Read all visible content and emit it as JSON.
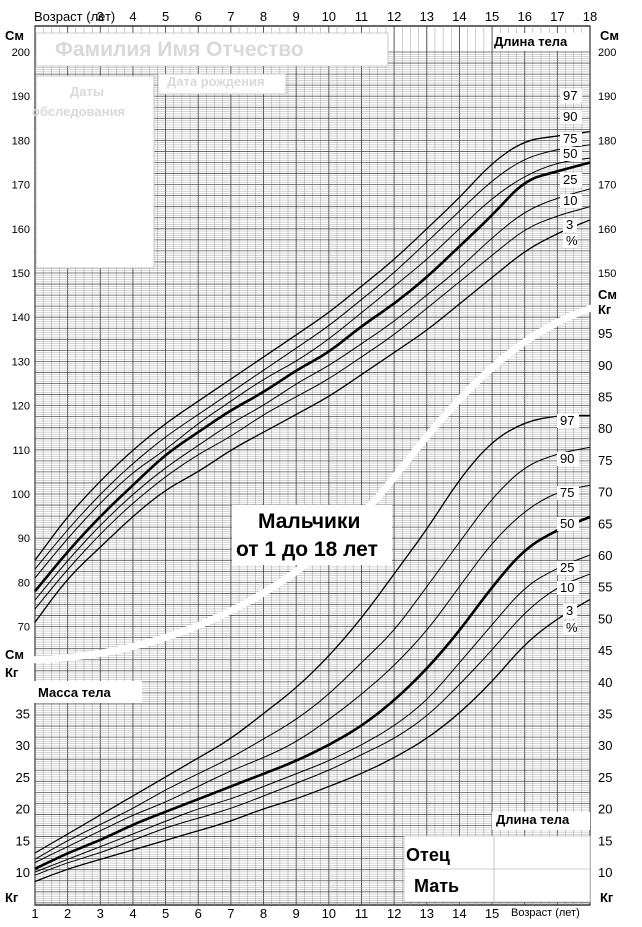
{
  "header": {
    "age_label": "Возраст (лет)",
    "height_title": "Длина тела",
    "cm": "См",
    "kg": "Кг"
  },
  "form": {
    "name_placeholder": "Фамилия Имя Отчество",
    "exam_dates": "Даты обследования",
    "exam_dates_l1": "Даты",
    "exam_dates_l2": "обследования",
    "birth_date": "Дата рождения"
  },
  "title": {
    "line1": "Мальчики",
    "line2": "от 1 до 18 лет"
  },
  "weight_title": "Масса тела",
  "parents": {
    "father": "Отец",
    "mother": "Мать",
    "height_label": "Длина тела"
  },
  "footer": {
    "age_label": "Возраст (лет)"
  },
  "chart_data": [
    {
      "type": "line",
      "title": "Длина тела",
      "unit": "См",
      "x_ticks_top": [
        3,
        4,
        5,
        6,
        7,
        8,
        9,
        10,
        11,
        12,
        13,
        14,
        15,
        16,
        17,
        18
      ],
      "xlim": [
        1,
        18
      ],
      "ylim": [
        70,
        200
      ],
      "y_ticks": [
        200,
        190,
        180,
        170,
        160,
        150,
        140,
        130,
        120,
        110,
        100,
        90,
        80,
        70
      ],
      "y_ticks_right": [
        200,
        190,
        180,
        170,
        160,
        150
      ],
      "percentile_labels": [
        "97",
        "90",
        "75",
        "50",
        "25",
        "10",
        "3",
        "%"
      ],
      "series": [
        {
          "name": "97",
          "x": [
            1,
            2,
            3,
            4,
            5,
            6,
            7,
            8,
            9,
            10,
            11,
            12,
            13,
            14,
            15,
            16,
            17,
            18
          ],
          "y": [
            85,
            95,
            103,
            110,
            116,
            121,
            126,
            131,
            136,
            141,
            147,
            153,
            160,
            167,
            175,
            180,
            181,
            182
          ]
        },
        {
          "name": "90",
          "x": [
            1,
            2,
            3,
            4,
            5,
            6,
            7,
            8,
            9,
            10,
            11,
            12,
            13,
            14,
            15,
            16,
            17,
            18
          ],
          "y": [
            83,
            92,
            100,
            107,
            113,
            118,
            123,
            128,
            133,
            138,
            144,
            150,
            157,
            164,
            171,
            176,
            178,
            179
          ]
        },
        {
          "name": "75",
          "x": [
            1,
            2,
            3,
            4,
            5,
            6,
            7,
            8,
            9,
            10,
            11,
            12,
            13,
            14,
            15,
            16,
            17,
            18
          ],
          "y": [
            81,
            90,
            98,
            105,
            110,
            116,
            121,
            126,
            130,
            135,
            141,
            147,
            153,
            160,
            167,
            172,
            175,
            176
          ]
        },
        {
          "name": "50",
          "x": [
            1,
            2,
            3,
            4,
            5,
            6,
            7,
            8,
            9,
            10,
            11,
            12,
            13,
            14,
            15,
            16,
            17,
            18
          ],
          "y": [
            78,
            87,
            95,
            102,
            109,
            114,
            119,
            123,
            128,
            132,
            138,
            143,
            149,
            156,
            163,
            171,
            173,
            175
          ]
        },
        {
          "name": "25",
          "x": [
            1,
            2,
            3,
            4,
            5,
            6,
            7,
            8,
            9,
            10,
            11,
            12,
            13,
            14,
            15,
            16,
            17,
            18
          ],
          "y": [
            76,
            85,
            93,
            100,
            106,
            111,
            116,
            120,
            125,
            129,
            134,
            139,
            145,
            151,
            158,
            164,
            167,
            169
          ]
        },
        {
          "name": "10",
          "x": [
            1,
            2,
            3,
            4,
            5,
            6,
            7,
            8,
            9,
            10,
            11,
            12,
            13,
            14,
            15,
            16,
            17,
            18
          ],
          "y": [
            74,
            83,
            91,
            98,
            104,
            109,
            113,
            118,
            122,
            126,
            131,
            136,
            142,
            148,
            154,
            160,
            163,
            165
          ]
        },
        {
          "name": "3",
          "x": [
            1,
            2,
            3,
            4,
            5,
            6,
            7,
            8,
            9,
            10,
            11,
            12,
            13,
            14,
            15,
            16,
            17,
            18
          ],
          "y": [
            71,
            81,
            88,
            95,
            101,
            105,
            110,
            114,
            118,
            122,
            127,
            132,
            137,
            143,
            149,
            155,
            159,
            162
          ]
        }
      ]
    },
    {
      "type": "line",
      "title": "Масса тела",
      "unit": "Кг",
      "x_ticks_bottom": [
        1,
        2,
        3,
        4,
        5,
        6,
        7,
        8,
        9,
        10,
        11,
        12,
        13,
        14,
        15
      ],
      "xlabel": "Возраст (лет)",
      "xlim": [
        1,
        18
      ],
      "ylim": [
        10,
        95
      ],
      "y_ticks_left": [
        35,
        30,
        25,
        20,
        15,
        10
      ],
      "y_ticks_right": [
        95,
        90,
        85,
        80,
        75,
        70,
        65,
        60,
        55,
        50,
        45,
        40,
        35,
        30,
        25,
        20,
        15,
        10
      ],
      "percentile_labels": [
        "97",
        "90",
        "75",
        "50",
        "25",
        "10",
        "3",
        "%"
      ],
      "series": [
        {
          "name": "97",
          "x": [
            1,
            2,
            3,
            4,
            5,
            6,
            7,
            8,
            9,
            10,
            11,
            12,
            13,
            14,
            15,
            16,
            17,
            18
          ],
          "y": [
            13,
            16,
            19,
            22,
            25,
            28,
            31,
            35,
            39,
            44,
            50,
            57,
            64,
            72,
            78,
            81,
            82,
            82
          ]
        },
        {
          "name": "90",
          "x": [
            1,
            2,
            3,
            4,
            5,
            6,
            7,
            8,
            9,
            10,
            11,
            12,
            13,
            14,
            15,
            16,
            17,
            18
          ],
          "y": [
            12,
            15,
            17.5,
            20,
            23,
            25.5,
            28,
            31,
            34,
            38,
            43,
            48,
            55,
            62,
            69,
            74,
            76,
            77
          ]
        },
        {
          "name": "75",
          "x": [
            1,
            2,
            3,
            4,
            5,
            6,
            7,
            8,
            9,
            10,
            11,
            12,
            13,
            14,
            15,
            16,
            17,
            18
          ],
          "y": [
            11.5,
            14,
            16.5,
            19,
            21,
            23.5,
            26,
            28,
            30.5,
            34,
            38,
            42.5,
            48,
            55,
            62,
            67,
            70,
            71
          ]
        },
        {
          "name": "50",
          "x": [
            1,
            2,
            3,
            4,
            5,
            6,
            7,
            8,
            9,
            10,
            11,
            12,
            13,
            14,
            15,
            16,
            17,
            18
          ],
          "y": [
            10.5,
            13,
            15,
            17.5,
            19.5,
            21.5,
            23.5,
            25.5,
            27.5,
            30,
            33,
            37,
            42,
            48,
            55,
            61,
            64,
            66
          ]
        },
        {
          "name": "25",
          "x": [
            1,
            2,
            3,
            4,
            5,
            6,
            7,
            8,
            9,
            10,
            11,
            12,
            13,
            14,
            15,
            16,
            17,
            18
          ],
          "y": [
            10,
            12,
            14,
            16,
            18,
            20,
            21.5,
            23.5,
            25.5,
            27.5,
            30,
            33,
            37,
            43,
            49,
            55,
            58,
            60
          ]
        },
        {
          "name": "10",
          "x": [
            1,
            2,
            3,
            4,
            5,
            6,
            7,
            8,
            9,
            10,
            11,
            12,
            13,
            14,
            15,
            16,
            17,
            18
          ],
          "y": [
            9.5,
            11.5,
            13,
            15,
            17,
            18.5,
            20,
            22,
            24,
            26,
            28.5,
            31,
            34.5,
            39.5,
            45,
            51,
            55,
            57
          ]
        },
        {
          "name": "3",
          "x": [
            1,
            2,
            3,
            4,
            5,
            6,
            7,
            8,
            9,
            10,
            11,
            12,
            13,
            14,
            15,
            16,
            17,
            18
          ],
          "y": [
            8.5,
            10.5,
            12,
            13.5,
            15,
            16.5,
            18,
            20,
            21.5,
            23.5,
            25.5,
            28,
            31,
            35,
            40,
            46,
            50,
            53
          ]
        }
      ]
    }
  ]
}
